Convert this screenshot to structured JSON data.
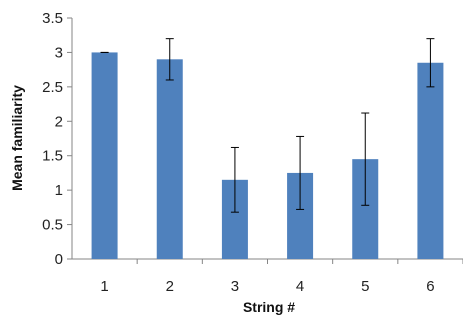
{
  "chart_data": {
    "type": "bar",
    "title": "",
    "xlabel": "String #",
    "ylabel": "Mean familiarity",
    "categories": [
      "1",
      "2",
      "3",
      "4",
      "5",
      "6"
    ],
    "values": [
      3.0,
      2.9,
      1.15,
      1.25,
      1.45,
      2.85
    ],
    "error_low": [
      3.0,
      2.6,
      0.68,
      0.72,
      0.78,
      2.5
    ],
    "error_high": [
      3.0,
      3.2,
      1.62,
      1.78,
      2.12,
      3.2
    ],
    "ylim": [
      0,
      3.5
    ],
    "yticks": [
      "0",
      "0.5",
      "1",
      "1.5",
      "2",
      "2.5",
      "3",
      "3.5"
    ],
    "grid": false,
    "legend": "none",
    "bar_color": "#4f81bd"
  }
}
